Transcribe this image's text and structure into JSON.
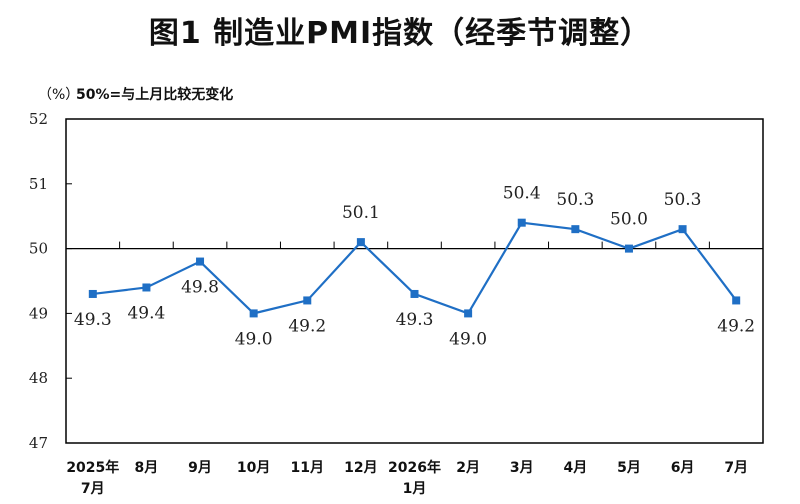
{
  "title": "图1  制造业PMI指数（经季节调整）",
  "units": "（%）",
  "note": "50%=与上月比较无变化",
  "colors": {
    "line": "#1f6fc5",
    "marker": "#1f6fc5",
    "frame": "#000000"
  },
  "chart_data": {
    "type": "line",
    "categories": [
      [
        "2025年",
        "7月"
      ],
      [
        "8月"
      ],
      [
        "9月"
      ],
      [
        "10月"
      ],
      [
        "11月"
      ],
      [
        "12月"
      ],
      [
        "2026年",
        "1月"
      ],
      [
        "2月"
      ],
      [
        "3月"
      ],
      [
        "4月"
      ],
      [
        "5月"
      ],
      [
        "6月"
      ],
      [
        "7月"
      ]
    ],
    "values": [
      49.3,
      49.4,
      49.8,
      49.0,
      49.2,
      50.1,
      49.3,
      49.0,
      50.4,
      50.3,
      50.0,
      50.3,
      49.2
    ],
    "labels": [
      "49.3",
      "49.4",
      "49.8",
      "49.0",
      "49.2",
      "50.1",
      "49.3",
      "49.0",
      "50.4",
      "50.3",
      "50.0",
      "50.3",
      "49.2"
    ],
    "label_position": [
      "below",
      "below",
      "below",
      "below",
      "below",
      "above",
      "below",
      "below",
      "above",
      "above",
      "above",
      "above",
      "below"
    ],
    "ylim": [
      47,
      52
    ],
    "yticks": [
      "47",
      "48",
      "49",
      "50",
      "51",
      "52"
    ],
    "reference_line": 50,
    "marker": "square",
    "grid": false,
    "legend": "none"
  }
}
